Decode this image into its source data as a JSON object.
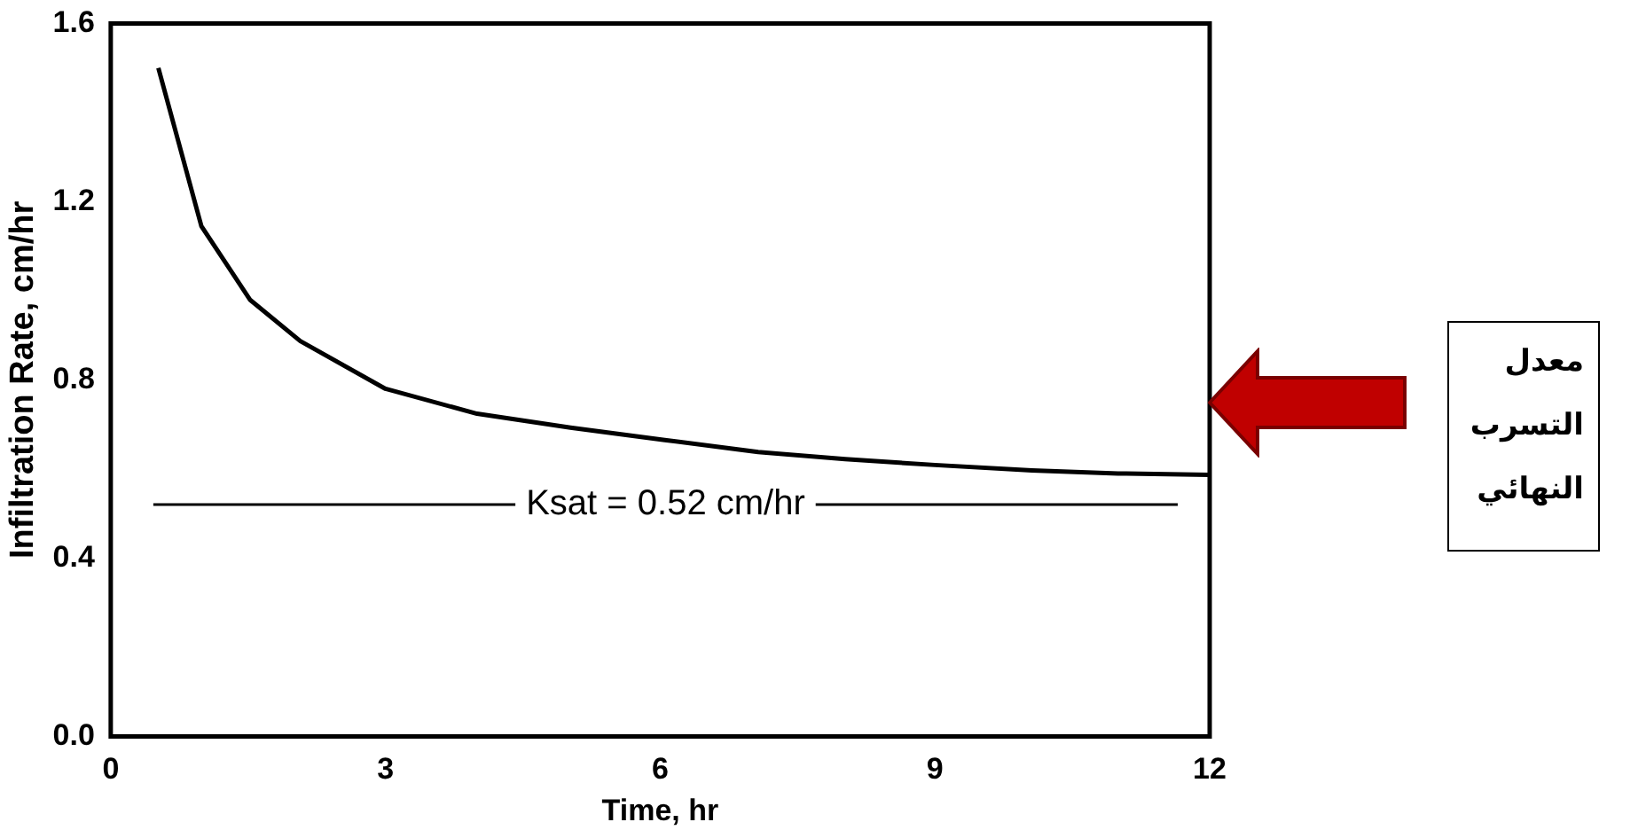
{
  "chart_data": {
    "type": "line",
    "xlabel": "Time, hr",
    "ylabel": "Infiltration Rate, cm/hr",
    "x": [
      0.52,
      0.99,
      1.52,
      2.07,
      3.0,
      4.0,
      5.02,
      6.05,
      7.07,
      8.02,
      9.0,
      10.06,
      11.0,
      12.0
    ],
    "series": [
      {
        "color": "#000000",
        "values": [
          1.5,
          1.145,
          0.98,
          0.887,
          0.78,
          0.724,
          0.693,
          0.665,
          0.638,
          0.622,
          0.609,
          0.597,
          0.59,
          0.587
        ]
      }
    ],
    "xlim": [
      0,
      12
    ],
    "xticks": [
      0,
      3,
      6,
      9,
      12
    ],
    "ylim": [
      0,
      1.6
    ],
    "yticks": [
      {
        "value": 0,
        "label": "0.0"
      },
      {
        "value": 0.4,
        "label": "0.4"
      },
      {
        "value": 0.8,
        "label": "0.8"
      },
      {
        "value": 1.2,
        "label": "1.2"
      },
      {
        "value": 1.6,
        "label": "1.6"
      }
    ],
    "ref_lines": [
      {
        "axis": "y",
        "value": 0.52,
        "label": "Ksat = 0.52 cm/hr"
      }
    ],
    "annotations": [
      "معدل التسرب النهائي"
    ],
    "grid": false,
    "legend": false,
    "marker": "none",
    "line_style": "solid"
  }
}
